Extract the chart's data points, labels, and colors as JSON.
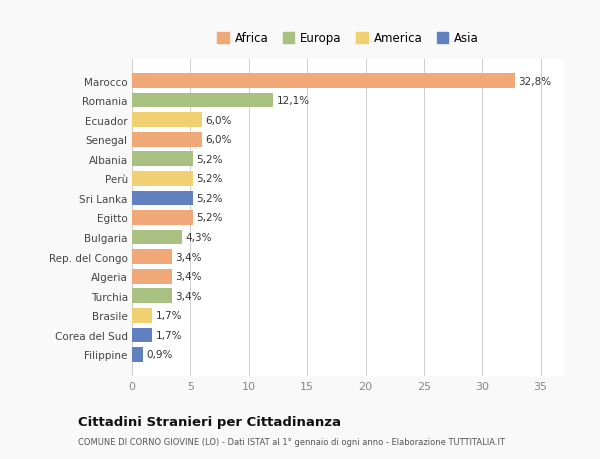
{
  "countries": [
    "Marocco",
    "Romania",
    "Ecuador",
    "Senegal",
    "Albania",
    "Perù",
    "Sri Lanka",
    "Egitto",
    "Bulgaria",
    "Rep. del Congo",
    "Algeria",
    "Turchia",
    "Brasile",
    "Corea del Sud",
    "Filippine"
  ],
  "values": [
    32.8,
    12.1,
    6.0,
    6.0,
    5.2,
    5.2,
    5.2,
    5.2,
    4.3,
    3.4,
    3.4,
    3.4,
    1.7,
    1.7,
    0.9
  ],
  "labels": [
    "32,8%",
    "12,1%",
    "6,0%",
    "6,0%",
    "5,2%",
    "5,2%",
    "5,2%",
    "5,2%",
    "4,3%",
    "3,4%",
    "3,4%",
    "3,4%",
    "1,7%",
    "1,7%",
    "0,9%"
  ],
  "continents": [
    "Africa",
    "Europa",
    "America",
    "Africa",
    "Europa",
    "America",
    "Asia",
    "Africa",
    "Europa",
    "Africa",
    "Africa",
    "Europa",
    "America",
    "Asia",
    "Asia"
  ],
  "colors": {
    "Africa": "#F0A878",
    "Europa": "#A8C080",
    "America": "#F0D070",
    "Asia": "#6080C0"
  },
  "legend_order": [
    "Africa",
    "Europa",
    "America",
    "Asia"
  ],
  "title": "Cittadini Stranieri per Cittadinanza",
  "subtitle": "COMUNE DI CORNO GIOVINE (LO) - Dati ISTAT al 1° gennaio di ogni anno - Elaborazione TUTTITALIA.IT",
  "xlim": [
    0,
    37
  ],
  "xticks": [
    0,
    5,
    10,
    15,
    20,
    25,
    30,
    35
  ],
  "background_color": "#f9f9f9",
  "bar_background": "#ffffff"
}
